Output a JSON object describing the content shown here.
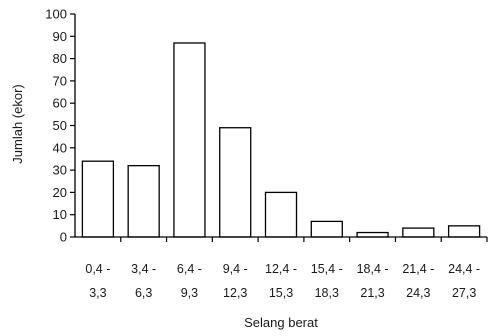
{
  "chart_data": {
    "type": "bar",
    "categories": [
      [
        "0,4 -",
        "3,3"
      ],
      [
        "3,4 -",
        "6,3"
      ],
      [
        "6,4 -",
        "9,3"
      ],
      [
        "9,4 -",
        "12,3"
      ],
      [
        "12,4 -",
        "15,3"
      ],
      [
        "15,4 -",
        "18,3"
      ],
      [
        "18,4 -",
        "21,3"
      ],
      [
        "21,4 -",
        "24,3"
      ],
      [
        "24,4 -",
        "27,3"
      ]
    ],
    "values": [
      34,
      32,
      87,
      49,
      20,
      7,
      2,
      4,
      5
    ],
    "xlabel": "Selang berat",
    "ylabel": "Jumlah (ekor)",
    "ylim": [
      0,
      100
    ],
    "yticks": [
      0,
      10,
      20,
      30,
      40,
      50,
      60,
      70,
      80,
      90,
      100
    ],
    "grid": false,
    "bar_fill": "#ffffff",
    "bar_stroke": "#000000"
  }
}
